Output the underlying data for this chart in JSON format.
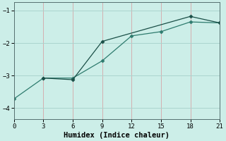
{
  "title": "",
  "xlabel": "Humidex (Indice chaleur)",
  "ylabel": "",
  "background_color": "#cceee8",
  "grid_color": "#aad4ce",
  "line1_x": [
    0,
    3,
    6,
    9,
    12,
    15,
    18,
    21
  ],
  "line1_y": [
    -3.72,
    -3.08,
    -3.08,
    -2.55,
    -1.78,
    -1.65,
    -1.35,
    -1.38
  ],
  "line2_x": [
    3,
    6,
    9,
    18,
    21
  ],
  "line2_y": [
    -3.08,
    -3.13,
    -1.95,
    -1.18,
    -1.38
  ],
  "line_color1": "#2e7b6e",
  "line_color2": "#1a4f47",
  "xlim": [
    0,
    21
  ],
  "ylim": [
    -4.35,
    -0.75
  ],
  "xticks": [
    0,
    3,
    6,
    9,
    12,
    15,
    18,
    21
  ],
  "yticks": [
    -4,
    -3,
    -2,
    -1
  ],
  "marker": "D",
  "markersize": 2.5,
  "linewidth": 0.9,
  "xlabel_fontsize": 7.5,
  "tick_fontsize": 6.5
}
